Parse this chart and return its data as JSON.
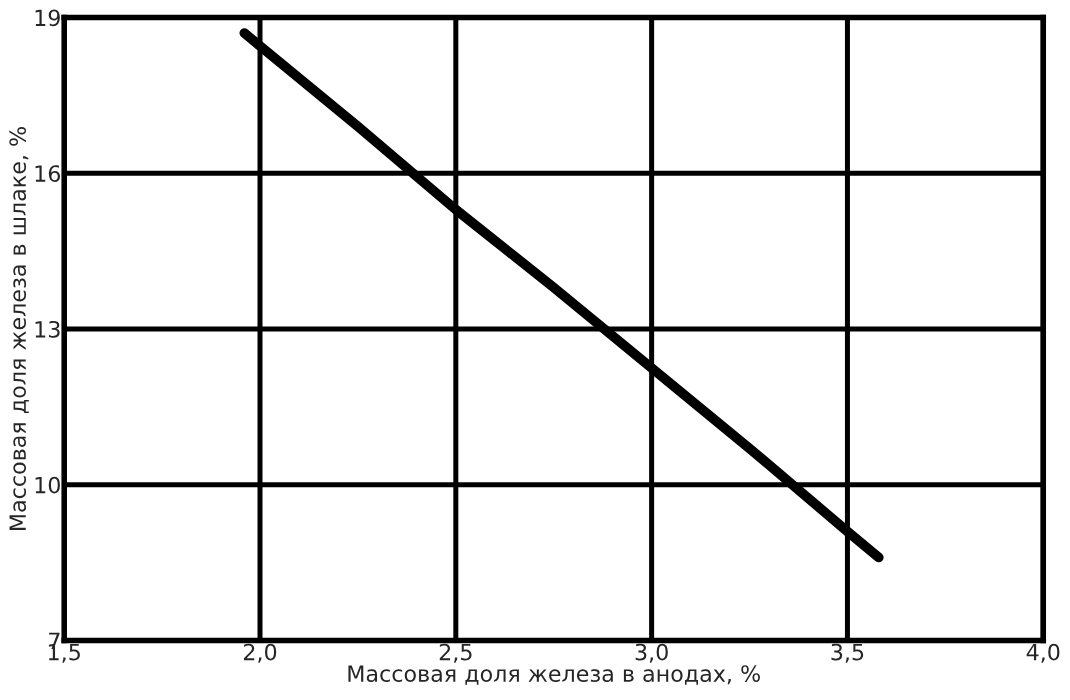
{
  "chart_data": {
    "type": "line",
    "xlabel": "Массовая доля железа в анодах, %",
    "ylabel": "Массовая доля железа в шлаке, %",
    "x": [
      1.96,
      2.0,
      2.25,
      2.5,
      2.75,
      3.0,
      3.25,
      3.5,
      3.58
    ],
    "series": [
      {
        "color": "#000000",
        "values": [
          18.7,
          18.45,
          16.9,
          15.3,
          13.8,
          12.25,
          10.7,
          9.1,
          8.6
        ]
      }
    ],
    "xlim": [
      1.5,
      4.0
    ],
    "ylim": [
      7,
      19
    ],
    "xticks": [
      {
        "value": 1.5,
        "label": "1,5"
      },
      {
        "value": 2.0,
        "label": "2,0"
      },
      {
        "value": 2.5,
        "label": "2,5"
      },
      {
        "value": 3.0,
        "label": "3,0"
      },
      {
        "value": 3.5,
        "label": "3,5"
      },
      {
        "value": 4.0,
        "label": "4,0"
      }
    ],
    "yticks": [
      7,
      10,
      13,
      16,
      19
    ],
    "grid": true,
    "marker": "none",
    "line_style": "solid"
  }
}
